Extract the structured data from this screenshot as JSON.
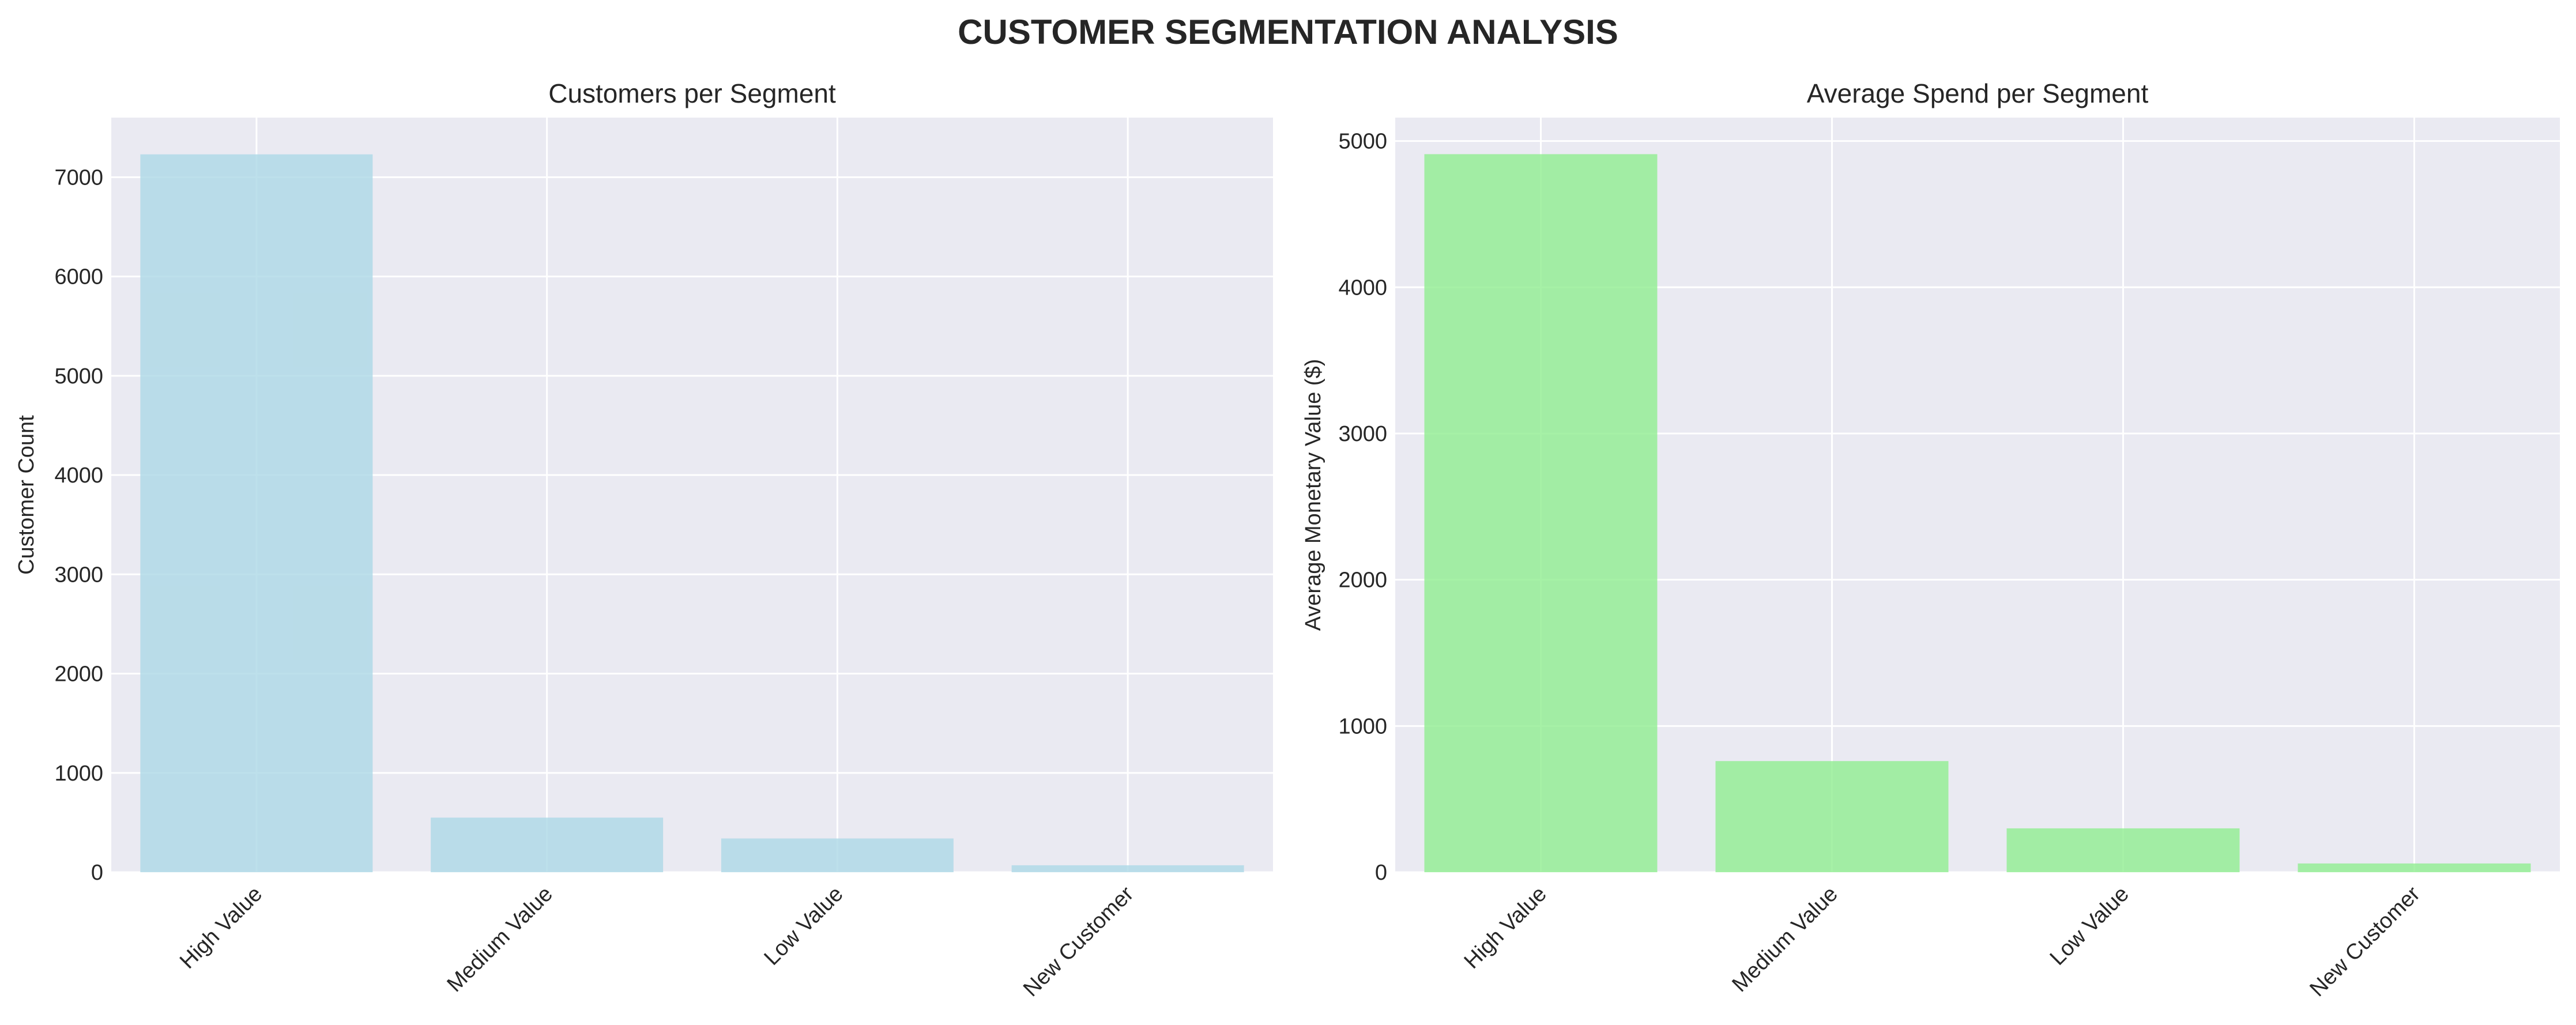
{
  "figure": {
    "title": "CUSTOMER SEGMENTATION ANALYSIS"
  },
  "chart_data": [
    {
      "type": "bar",
      "title": "Customers per Segment",
      "xlabel": "",
      "ylabel": "Customer Count",
      "categories": [
        "High Value",
        "Medium Value",
        "Low Value",
        "New Customer"
      ],
      "values": [
        7230,
        550,
        340,
        70
      ],
      "ylim": [
        0,
        7600
      ],
      "yticks": [
        0,
        1000,
        2000,
        3000,
        4000,
        5000,
        6000,
        7000
      ],
      "bar_color": "#add8e6",
      "grid": true
    },
    {
      "type": "bar",
      "title": "Average Spend per Segment",
      "xlabel": "",
      "ylabel": "Average Monetary Value ($)",
      "categories": [
        "High Value",
        "Medium Value",
        "Low Value",
        "New Customer"
      ],
      "values": [
        4910,
        760,
        300,
        60
      ],
      "ylim": [
        0,
        5160
      ],
      "yticks": [
        0,
        1000,
        2000,
        3000,
        4000,
        5000
      ],
      "bar_color": "#90ee90",
      "grid": true
    }
  ]
}
